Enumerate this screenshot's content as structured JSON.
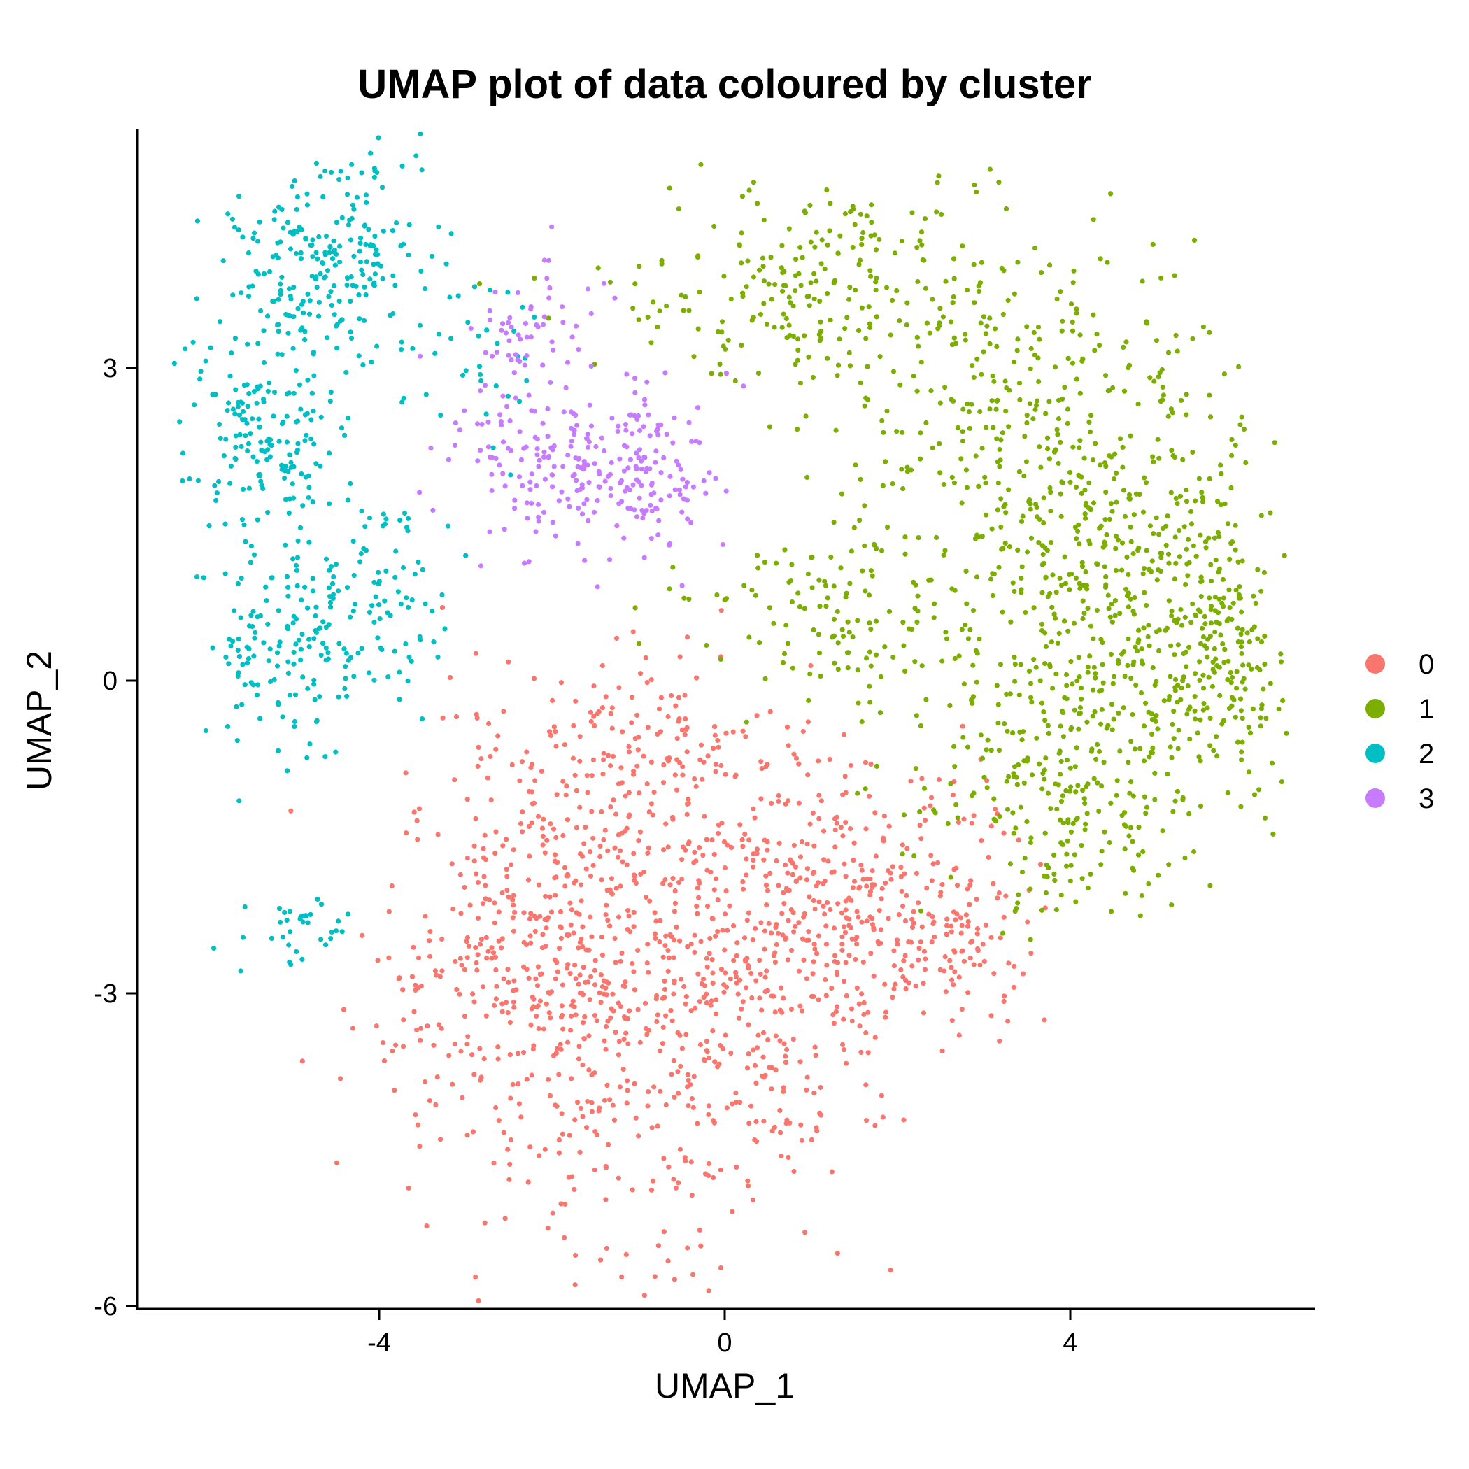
{
  "chart_data": {
    "type": "scatter",
    "title": "UMAP plot of data coloured by cluster",
    "xlabel": "UMAP_1",
    "ylabel": "UMAP_2",
    "xlim": [
      -6.8,
      6.9
    ],
    "ylim": [
      -6.05,
      5.3
    ],
    "xticks": [
      -4,
      0,
      4
    ],
    "yticks": [
      -6,
      -3,
      0,
      3
    ],
    "xtick_labels": [
      "-4",
      "0",
      "4"
    ],
    "ytick_labels": [
      "-6",
      "-3",
      "0",
      "3"
    ],
    "grid": false,
    "legend_position": "right",
    "series": [
      {
        "name": "0",
        "color": "#F8766D",
        "n_points": 1450,
        "regions": [
          {
            "cx": -1.2,
            "cy": -3.2,
            "sx": 1.4,
            "sy": 1.15,
            "weight": 0.42
          },
          {
            "cx": 0.6,
            "cy": -2.4,
            "sx": 1.1,
            "sy": 0.9,
            "weight": 0.22
          },
          {
            "cx": -2.3,
            "cy": -2.3,
            "sx": 0.75,
            "sy": 0.9,
            "weight": 0.12
          },
          {
            "cx": 1.8,
            "cy": -2.0,
            "sx": 0.8,
            "sy": 0.55,
            "weight": 0.1
          },
          {
            "cx": -1.0,
            "cy": -0.6,
            "sx": 0.9,
            "sy": 0.45,
            "weight": 0.1
          },
          {
            "cx": 2.7,
            "cy": -2.6,
            "sx": 0.35,
            "sy": 0.3,
            "weight": 0.04
          }
        ]
      },
      {
        "name": "1",
        "color": "#7CAE00",
        "n_points": 1450,
        "regions": [
          {
            "cx": 4.6,
            "cy": 0.8,
            "sx": 0.95,
            "sy": 1.2,
            "weight": 0.3
          },
          {
            "cx": 3.3,
            "cy": 2.2,
            "sx": 1.0,
            "sy": 0.95,
            "weight": 0.22
          },
          {
            "cx": 1.1,
            "cy": 3.8,
            "sx": 1.1,
            "sy": 0.45,
            "weight": 0.16
          },
          {
            "cx": 3.9,
            "cy": -1.0,
            "sx": 0.8,
            "sy": 0.7,
            "weight": 0.15
          },
          {
            "cx": 1.2,
            "cy": 0.6,
            "sx": 0.85,
            "sy": 0.45,
            "weight": 0.08
          },
          {
            "cx": 5.8,
            "cy": 0.3,
            "sx": 0.35,
            "sy": 0.6,
            "weight": 0.09
          }
        ]
      },
      {
        "name": "2",
        "color": "#00BFC4",
        "n_points": 700,
        "regions": [
          {
            "cx": -4.6,
            "cy": 4.0,
            "sx": 0.55,
            "sy": 0.55,
            "weight": 0.33
          },
          {
            "cx": -5.3,
            "cy": 2.4,
            "sx": 0.45,
            "sy": 0.55,
            "weight": 0.25
          },
          {
            "cx": -5.0,
            "cy": 0.4,
            "sx": 0.45,
            "sy": 0.5,
            "weight": 0.22
          },
          {
            "cx": -3.9,
            "cy": 0.7,
            "sx": 0.45,
            "sy": 0.55,
            "weight": 0.1
          },
          {
            "cx": -5.0,
            "cy": -2.4,
            "sx": 0.35,
            "sy": 0.18,
            "weight": 0.05
          },
          {
            "cx": -2.8,
            "cy": 3.1,
            "sx": 0.4,
            "sy": 0.4,
            "weight": 0.05
          }
        ]
      },
      {
        "name": "3",
        "color": "#C77CFF",
        "n_points": 330,
        "regions": [
          {
            "cx": -1.0,
            "cy": 2.0,
            "sx": 0.45,
            "sy": 0.4,
            "weight": 0.5
          },
          {
            "cx": -2.3,
            "cy": 2.1,
            "sx": 0.5,
            "sy": 0.5,
            "weight": 0.35
          },
          {
            "cx": -2.1,
            "cy": 3.4,
            "sx": 0.35,
            "sy": 0.3,
            "weight": 0.15
          }
        ]
      }
    ]
  }
}
